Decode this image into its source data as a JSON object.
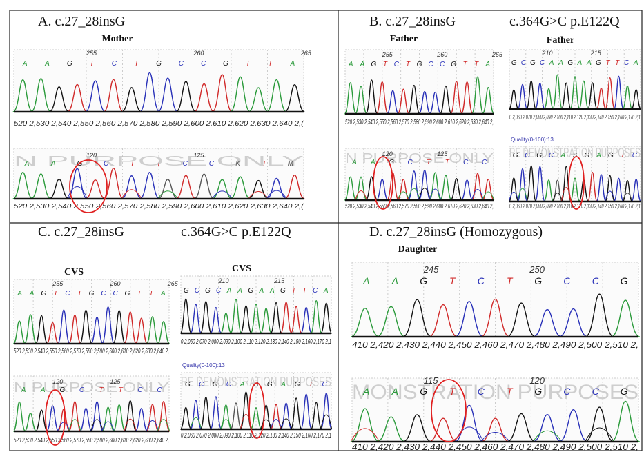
{
  "panels": [
    {
      "heading": "A. c.27_28insG",
      "traces": [
        {
          "label": "Mother",
          "ruler": [
            "255",
            "260",
            "265"
          ],
          "bases": [
            "A",
            "A",
            "G",
            "T",
            "C",
            "T",
            "G",
            "C",
            "C",
            "G",
            "T",
            "T",
            "A"
          ],
          "axis": "520 2,530 2,540 2,550 2,560 2,570 2,580 2,590 2,600 2,610 2,620 2,630 2,640 2,("
        },
        {
          "watermark": "N PURPOSE ONLY",
          "ruler": [
            "120",
            "125"
          ],
          "bases": [
            "A",
            "A",
            "G",
            "C",
            "T",
            "T",
            "C",
            "C",
            "K",
            "T",
            "M"
          ],
          "axis": "520 2,530 2,540 2,550 2,560 2,570 2,580 2,590 2,600 2,610 2,620 2,630 2,640 2,("
        }
      ]
    },
    {
      "heading": "B. c.27_28insG",
      "traces": [
        {
          "label": "Father",
          "ruler": [
            "255",
            "260",
            "265"
          ],
          "bases": [
            "A",
            "A",
            "G",
            "T",
            "C",
            "T",
            "G",
            "C",
            "C",
            "G",
            "T",
            "T",
            "A"
          ],
          "axis": "520 2,530 2,540 2,550 2,560 2,570 2,580 2,590 2,600 2,610 2,620 2,630 2,640 2,"
        },
        {
          "watermark": "N PURPOSE ONLY",
          "ruler": [
            "120",
            "125"
          ],
          "bases": [
            "A",
            "A",
            "G",
            "C",
            "T",
            "T",
            "C",
            "C"
          ],
          "axis": "520 2,530 2,540 2,550 2,560 2,570 2,580 2,590 2,600 2,610 2,620 2,630 2,640 2,"
        }
      ]
    },
    {
      "heading": "c.364G>C p.E122Q",
      "traces": [
        {
          "label": "Father",
          "ruler": [
            "210",
            "215"
          ],
          "bases": [
            "G",
            "C",
            "G",
            "C",
            "A",
            "A",
            "G",
            "A",
            "A",
            "G",
            "T",
            "T",
            "C",
            "A"
          ],
          "axis": "0 2,060 2,070 2,080 2,090 2,100 2,110 2,120 2,130 2,140 2,150 2,160 2,170 2,1"
        },
        {
          "quality": "Quality(0-100):13",
          "watermark": "RE DEMONSTRATION PURPOSES",
          "bases": [
            "G",
            "C",
            "G",
            "C",
            "A",
            "S",
            "G",
            "A",
            "G",
            "T",
            "C"
          ],
          "axis": "0 2,060 2,070 2,080 2,090 2,100 2,110 2,120 2,130 2,140 2,150 2,160 2,170 2,1"
        }
      ]
    },
    {
      "heading": "C. c.27_28insG",
      "traces": [
        {
          "label": "CVS",
          "ruler": [
            "255",
            "260",
            "265"
          ],
          "bases": [
            "A",
            "A",
            "G",
            "T",
            "C",
            "T",
            "G",
            "C",
            "C",
            "G",
            "T",
            "T",
            "A"
          ],
          "axis": "520 2,530 2,540 2,550 2,560 2,570 2,580 2,590 2,600 2,610 2,620 2,630 2,640 2,"
        },
        {
          "watermark": "N PURPOSE ONLY",
          "ruler": [
            "120",
            "125"
          ],
          "bases": [
            "A",
            "A",
            "G",
            "C",
            "T",
            "T",
            "C",
            "C"
          ],
          "axis": "520 2,530 2,540 2,550 2,560 2,570 2,580 2,590 2,600 2,610 2,620 2,630 2,640 2,"
        }
      ]
    },
    {
      "heading": "c.364G>C p.E122Q",
      "traces": [
        {
          "label": "CVS",
          "ruler": [
            "210",
            "215"
          ],
          "bases": [
            "G",
            "C",
            "G",
            "C",
            "A",
            "A",
            "G",
            "A",
            "A",
            "G",
            "T",
            "T",
            "C",
            "A"
          ],
          "axis": "0 2,060 2,070 2,080 2,090 2,100 2,110 2,120 2,130 2,140 2,150 2,160 2,170 2,1"
        },
        {
          "quality": "Quality(0-100):13",
          "watermark": "RE DEMONSTRATION PURPOSES",
          "bases": [
            "G",
            "C",
            "G",
            "C",
            "A",
            "S",
            "G",
            "A",
            "G",
            "T",
            "C"
          ],
          "axis": "0 2,060 2,070 2,080 2,090 2,100 2,110 2,120 2,130 2,140 2,150 2,160 2,170 2,1"
        }
      ]
    },
    {
      "heading": "D. c.27_28insG (Homozygous)",
      "traces": [
        {
          "label": "Daughter",
          "ruler": [
            "245",
            "250"
          ],
          "bases": [
            "A",
            "A",
            "G",
            "T",
            "C",
            "T",
            "G",
            "C",
            "C",
            "G"
          ],
          "axis": "410 2,420 2,430 2,440 2,450 2,460 2,470 2,480 2,490 2,500 2,510 2,"
        },
        {
          "watermark": "MONSTRATION PURPOSES",
          "ruler": [
            "115",
            "120"
          ],
          "bases": [
            "A",
            "A",
            "G",
            "T",
            "C",
            "T",
            "G",
            "C",
            "C",
            "G"
          ],
          "axis": "410 2,420 2,430 2,440 2,450 2,460 2,470 2,480 2,490 2,500 2,510 2,"
        }
      ]
    }
  ]
}
